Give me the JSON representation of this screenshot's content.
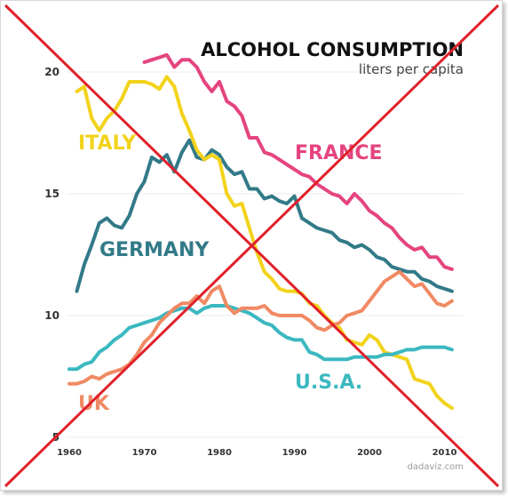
{
  "chart_data": {
    "type": "line",
    "title": "ALCOHOL CONSUMPTION",
    "subtitle": "liters per capita",
    "xlabel": "",
    "ylabel": "",
    "xlim": [
      1958,
      2013
    ],
    "ylim": [
      5,
      21.5
    ],
    "yticks": [
      "5",
      "10",
      "15",
      "20"
    ],
    "xticks": [
      "1960",
      "1970",
      "1980",
      "1990",
      "2000",
      "2010"
    ],
    "grid": true,
    "credit": "dadaviz.com",
    "overlay": "red X crossing out the chart",
    "series": [
      {
        "name": "FRANCE",
        "color": "#e5447f",
        "x": [
          1970,
          1971,
          1972,
          1973,
          1974,
          1975,
          1976,
          1977,
          1978,
          1979,
          1980,
          1981,
          1982,
          1983,
          1984,
          1985,
          1986,
          1987,
          1988,
          1989,
          1990,
          1991,
          1992,
          1993,
          1994,
          1995,
          1996,
          1997,
          1998,
          1999,
          2000,
          2001,
          2002,
          2003,
          2004,
          2005,
          2006,
          2007,
          2008,
          2009,
          2010,
          2011
        ],
        "values": [
          20.4,
          20.5,
          20.6,
          20.7,
          20.2,
          20.5,
          20.5,
          20.2,
          19.6,
          19.2,
          19.6,
          18.8,
          18.6,
          18.2,
          17.3,
          17.3,
          16.7,
          16.6,
          16.4,
          16.2,
          16.0,
          15.8,
          15.7,
          15.4,
          15.2,
          15.0,
          14.9,
          14.6,
          15.0,
          14.7,
          14.3,
          14.1,
          13.8,
          13.6,
          13.2,
          12.9,
          12.7,
          12.8,
          12.4,
          12.4,
          12.0,
          11.9
        ]
      },
      {
        "name": "GERMANY",
        "color": "#327a88",
        "x": [
          1961,
          1962,
          1963,
          1964,
          1965,
          1966,
          1967,
          1968,
          1969,
          1970,
          1971,
          1972,
          1973,
          1974,
          1975,
          1976,
          1977,
          1978,
          1979,
          1980,
          1981,
          1982,
          1983,
          1984,
          1985,
          1986,
          1987,
          1988,
          1989,
          1990,
          1991,
          1992,
          1993,
          1994,
          1995,
          1996,
          1997,
          1998,
          1999,
          2000,
          2001,
          2002,
          2003,
          2004,
          2005,
          2006,
          2007,
          2008,
          2009,
          2010,
          2011
        ],
        "values": [
          11.0,
          12.1,
          12.9,
          13.8,
          14.0,
          13.7,
          13.6,
          14.1,
          15.0,
          15.5,
          16.5,
          16.3,
          16.6,
          15.9,
          16.7,
          17.2,
          16.5,
          16.4,
          16.8,
          16.6,
          16.1,
          15.8,
          15.9,
          15.2,
          15.2,
          14.8,
          14.9,
          14.7,
          14.6,
          14.9,
          14.0,
          13.8,
          13.6,
          13.5,
          13.4,
          13.1,
          13.0,
          12.8,
          12.9,
          12.7,
          12.4,
          12.3,
          12.0,
          11.9,
          11.8,
          11.8,
          11.5,
          11.4,
          11.2,
          11.1,
          11.0
        ]
      },
      {
        "name": "ITALY",
        "color": "#f2d31c",
        "x": [
          1961,
          1962,
          1963,
          1964,
          1965,
          1966,
          1967,
          1968,
          1969,
          1970,
          1971,
          1972,
          1973,
          1974,
          1975,
          1976,
          1977,
          1978,
          1979,
          1980,
          1981,
          1982,
          1983,
          1984,
          1985,
          1986,
          1987,
          1988,
          1989,
          1990,
          1991,
          1992,
          1993,
          1994,
          1995,
          1996,
          1997,
          1998,
          1999,
          2000,
          2001,
          2002,
          2003,
          2004,
          2005,
          2006,
          2007,
          2008,
          2009,
          2010,
          2011
        ],
        "values": [
          19.2,
          19.4,
          18.1,
          17.6,
          18.1,
          18.4,
          18.9,
          19.6,
          19.6,
          19.6,
          19.5,
          19.3,
          19.8,
          19.4,
          18.3,
          17.6,
          16.8,
          16.4,
          16.6,
          16.4,
          15.0,
          14.5,
          14.6,
          13.6,
          12.6,
          11.8,
          11.5,
          11.1,
          11.0,
          11.0,
          10.9,
          10.5,
          10.4,
          10.0,
          9.7,
          9.5,
          9.0,
          8.9,
          8.8,
          9.2,
          9.0,
          8.5,
          8.4,
          8.3,
          8.2,
          7.4,
          7.3,
          7.2,
          6.7,
          6.4,
          6.2
        ]
      },
      {
        "name": "U.S.A.",
        "color": "#3bb8c0",
        "x": [
          1960,
          1961,
          1962,
          1963,
          1964,
          1965,
          1966,
          1967,
          1968,
          1969,
          1970,
          1971,
          1972,
          1973,
          1974,
          1975,
          1976,
          1977,
          1978,
          1979,
          1980,
          1981,
          1982,
          1983,
          1984,
          1985,
          1986,
          1987,
          1988,
          1989,
          1990,
          1991,
          1992,
          1993,
          1994,
          1995,
          1996,
          1997,
          1998,
          1999,
          2000,
          2001,
          2002,
          2003,
          2004,
          2005,
          2006,
          2007,
          2008,
          2009,
          2010,
          2011
        ],
        "values": [
          7.8,
          7.8,
          8.0,
          8.1,
          8.5,
          8.7,
          9.0,
          9.2,
          9.5,
          9.6,
          9.7,
          9.8,
          9.9,
          10.1,
          10.2,
          10.3,
          10.3,
          10.1,
          10.3,
          10.4,
          10.4,
          10.4,
          10.3,
          10.2,
          10.1,
          9.9,
          9.7,
          9.6,
          9.3,
          9.1,
          9.0,
          9.0,
          8.5,
          8.4,
          8.2,
          8.2,
          8.2,
          8.2,
          8.3,
          8.3,
          8.3,
          8.3,
          8.4,
          8.4,
          8.5,
          8.6,
          8.6,
          8.7,
          8.7,
          8.7,
          8.7,
          8.6
        ]
      },
      {
        "name": "UK",
        "color": "#f08a64",
        "x": [
          1960,
          1961,
          1962,
          1963,
          1964,
          1965,
          1966,
          1967,
          1968,
          1969,
          1970,
          1971,
          1972,
          1973,
          1974,
          1975,
          1976,
          1977,
          1978,
          1979,
          1980,
          1981,
          1982,
          1983,
          1984,
          1985,
          1986,
          1987,
          1988,
          1989,
          1990,
          1991,
          1992,
          1993,
          1994,
          1995,
          1996,
          1997,
          1998,
          1999,
          2000,
          2001,
          2002,
          2003,
          2004,
          2005,
          2006,
          2007,
          2008,
          2009,
          2010,
          2011
        ],
        "values": [
          7.2,
          7.2,
          7.3,
          7.5,
          7.4,
          7.6,
          7.7,
          7.8,
          8.0,
          8.4,
          8.9,
          9.2,
          9.7,
          10.0,
          10.3,
          10.5,
          10.5,
          10.8,
          10.5,
          11.0,
          11.2,
          10.4,
          10.1,
          10.3,
          10.3,
          10.3,
          10.4,
          10.1,
          10.0,
          10.0,
          10.0,
          10.0,
          9.8,
          9.5,
          9.4,
          9.6,
          9.7,
          10.0,
          10.1,
          10.2,
          10.6,
          11.0,
          11.4,
          11.6,
          11.8,
          11.5,
          11.2,
          11.3,
          10.9,
          10.5,
          10.4,
          10.6
        ]
      }
    ],
    "labels": [
      {
        "text": "FRANCE",
        "color": "#e5447f"
      },
      {
        "text": "GERMANY",
        "color": "#327a88"
      },
      {
        "text": "ITALY",
        "color": "#f2d31c"
      },
      {
        "text": "U.S.A.",
        "color": "#3bb8c0"
      },
      {
        "text": "UK",
        "color": "#f08a64"
      }
    ],
    "overlay_color": "#e0202a"
  }
}
